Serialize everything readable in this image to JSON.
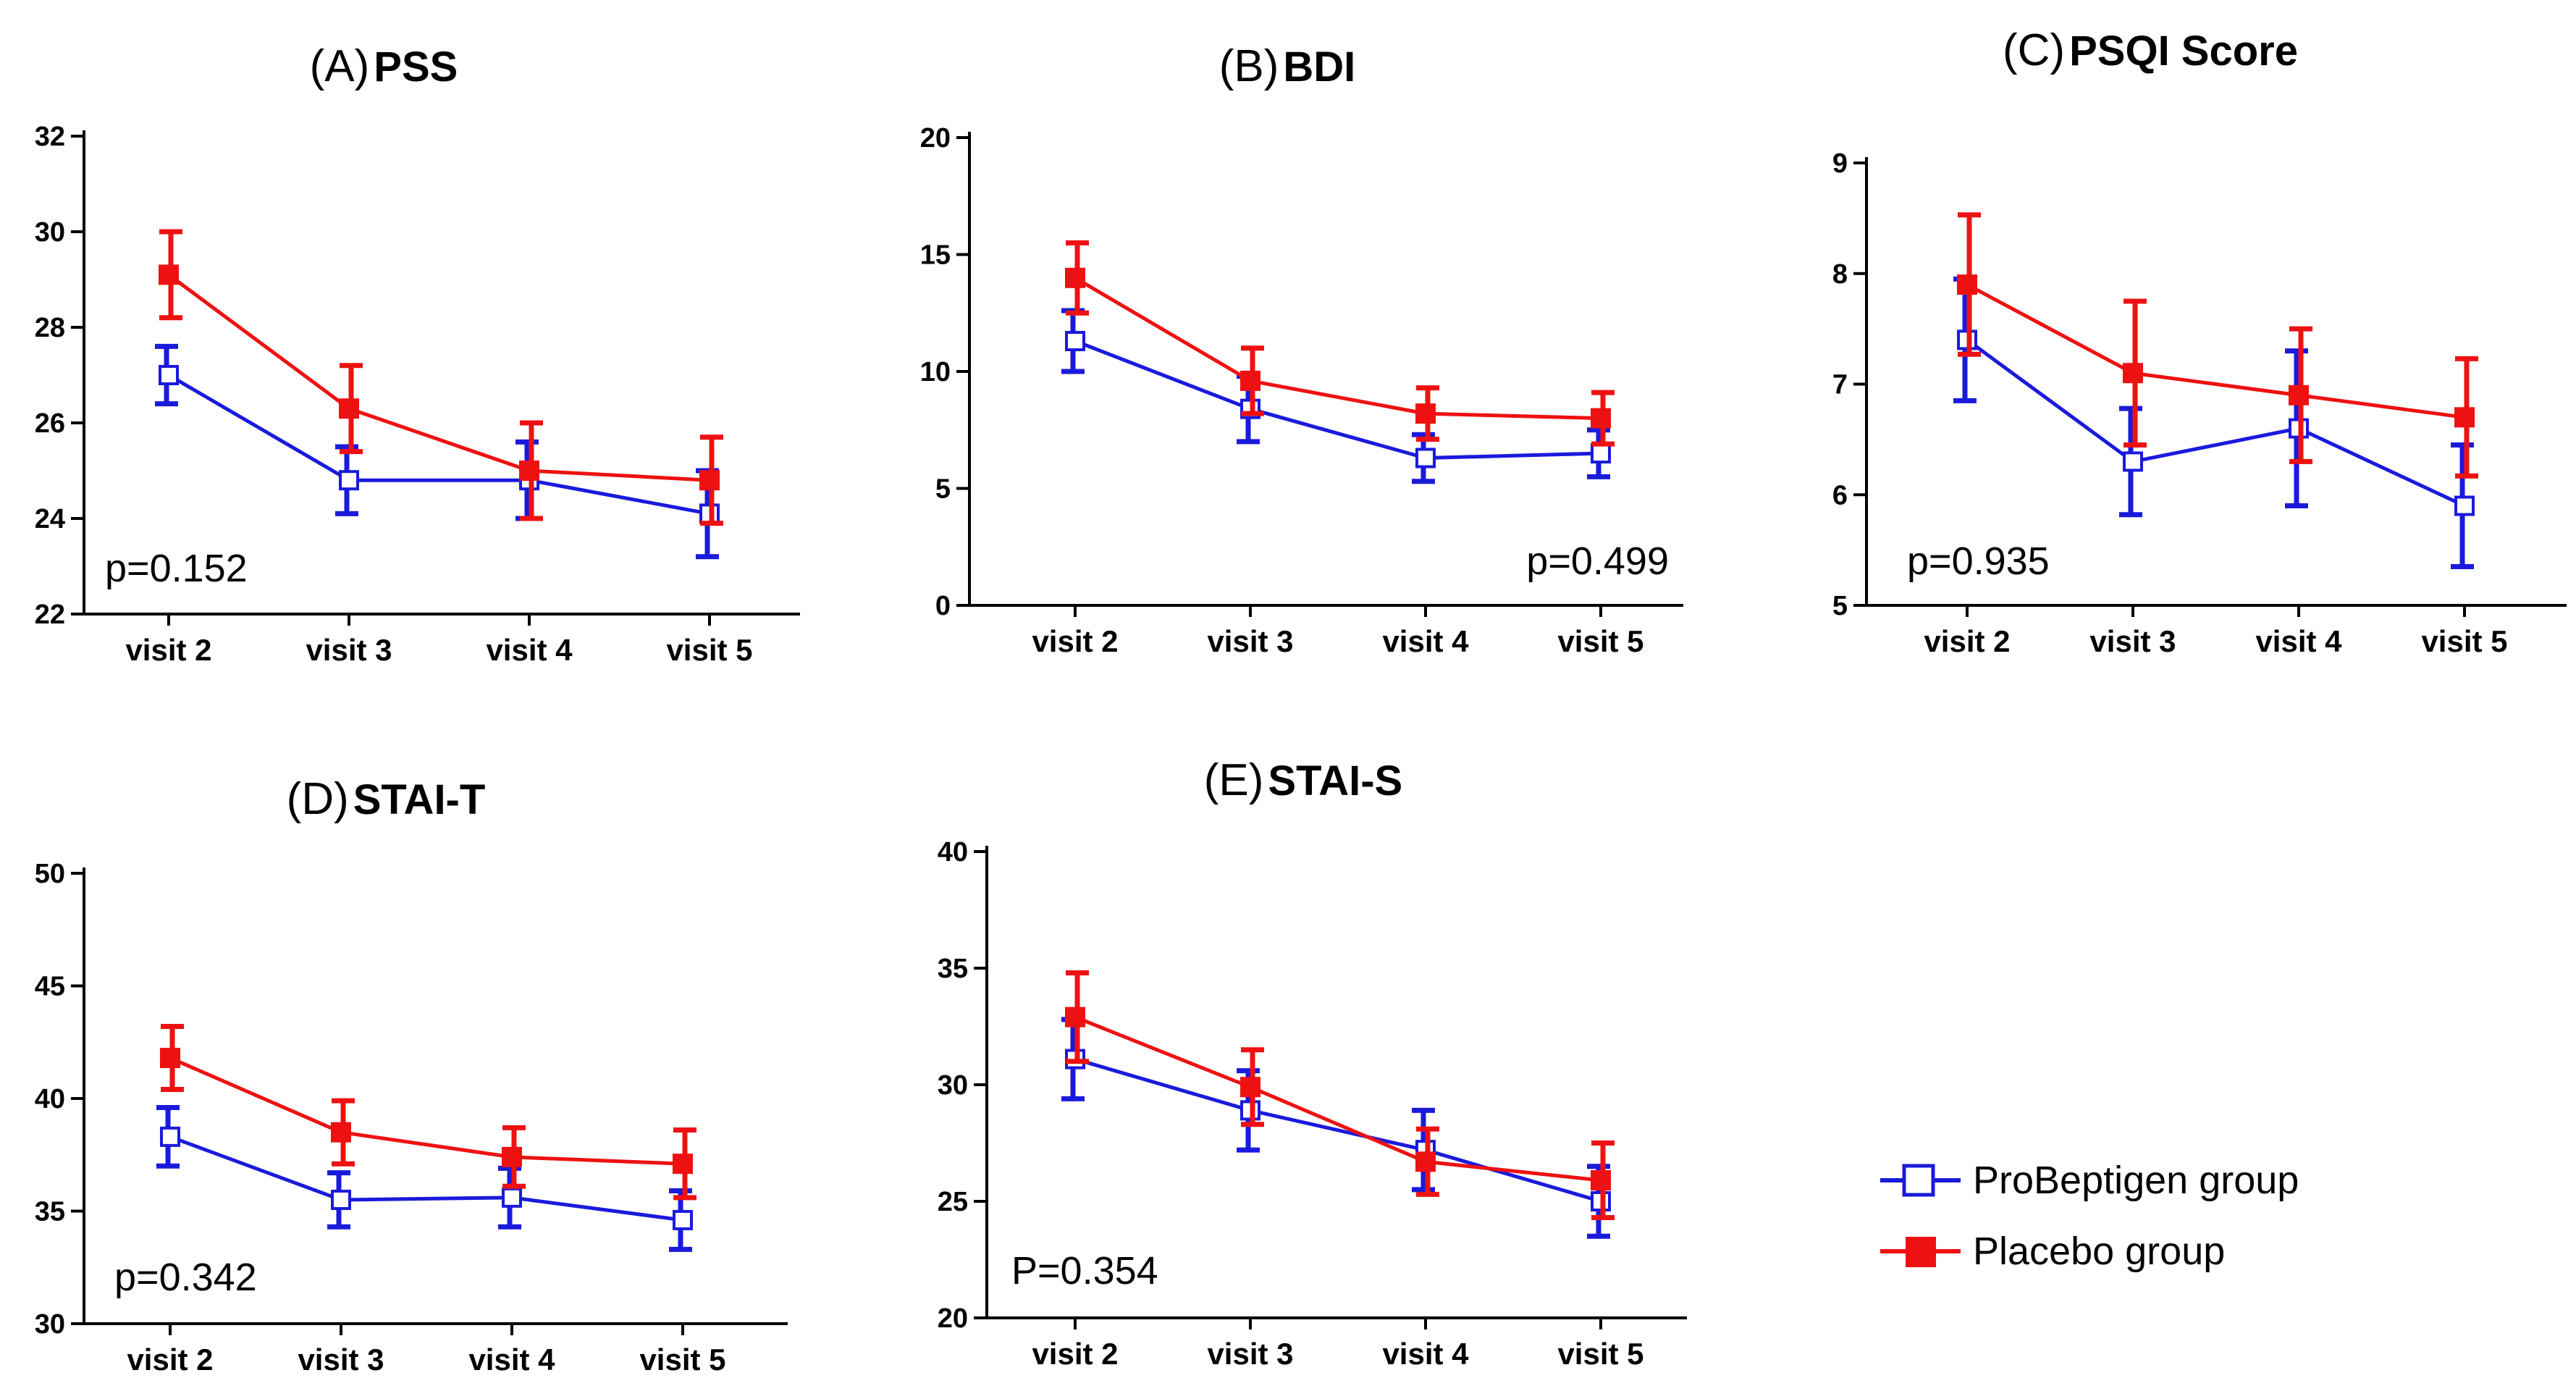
{
  "legend": {
    "items": [
      {
        "label": "ProBeptigen group",
        "color": "#1a1adc",
        "marker": "open-square"
      },
      {
        "label": "Placebo group",
        "color": "#ee1111",
        "marker": "filled-square"
      }
    ]
  },
  "chart_data": [
    {
      "type": "line",
      "panel": "A",
      "title_prefix": "(A)",
      "title": "PSS",
      "categories": [
        "visit 2",
        "visit 3",
        "visit 4",
        "visit 5"
      ],
      "ylim": [
        22,
        32
      ],
      "yticks": [
        22,
        24,
        26,
        28,
        30,
        32
      ],
      "annotation": "p=0.152",
      "annotation_position": "bottom-left",
      "series": [
        {
          "name": "ProBeptigen group",
          "values": [
            27.0,
            24.8,
            24.8,
            24.1
          ],
          "error": [
            0.6,
            0.7,
            0.8,
            0.9
          ]
        },
        {
          "name": "Placebo group",
          "values": [
            29.1,
            26.3,
            25.0,
            24.8
          ],
          "error": [
            0.9,
            0.9,
            1.0,
            0.9
          ]
        }
      ]
    },
    {
      "type": "line",
      "panel": "B",
      "title_prefix": "(B)",
      "title": "BDI",
      "categories": [
        "visit 2",
        "visit 3",
        "visit 4",
        "visit 5"
      ],
      "ylim": [
        0,
        20
      ],
      "yticks": [
        0,
        5,
        10,
        15,
        20
      ],
      "annotation": "p=0.499",
      "annotation_position": "bottom-right",
      "series": [
        {
          "name": "ProBeptigen group",
          "values": [
            11.3,
            8.4,
            6.3,
            6.5
          ],
          "error": [
            1.3,
            1.4,
            1.0,
            1.0
          ]
        },
        {
          "name": "Placebo group",
          "values": [
            14.0,
            9.6,
            8.2,
            8.0
          ],
          "error": [
            1.5,
            1.4,
            1.1,
            1.1
          ]
        }
      ]
    },
    {
      "type": "line",
      "panel": "C",
      "title_prefix": "(C)",
      "title": "PSQI Score",
      "categories": [
        "visit 2",
        "visit 3",
        "visit 4",
        "visit 5"
      ],
      "ylim": [
        5,
        9
      ],
      "yticks": [
        5,
        6,
        7,
        8,
        9
      ],
      "annotation": "p=0.935",
      "annotation_position": "bottom-left",
      "series": [
        {
          "name": "ProBeptigen group",
          "values": [
            7.4,
            6.3,
            6.6,
            5.9
          ],
          "error": [
            0.55,
            0.48,
            0.7,
            0.55
          ]
        },
        {
          "name": "Placebo group",
          "values": [
            7.9,
            7.1,
            6.9,
            6.7
          ],
          "error": [
            0.63,
            0.65,
            0.6,
            0.53
          ]
        }
      ]
    },
    {
      "type": "line",
      "panel": "D",
      "title_prefix": "(D)",
      "title": "STAI-T",
      "categories": [
        "visit 2",
        "visit 3",
        "visit 4",
        "visit 5"
      ],
      "ylim": [
        30,
        50
      ],
      "yticks": [
        30,
        35,
        40,
        45,
        50
      ],
      "annotation": "p=0.342",
      "annotation_position": "bottom-left",
      "series": [
        {
          "name": "ProBeptigen group",
          "values": [
            38.3,
            35.5,
            35.6,
            34.6
          ],
          "error": [
            1.3,
            1.2,
            1.3,
            1.3
          ]
        },
        {
          "name": "Placebo group",
          "values": [
            41.8,
            38.5,
            37.4,
            37.1
          ],
          "error": [
            1.4,
            1.4,
            1.3,
            1.5
          ]
        }
      ]
    },
    {
      "type": "line",
      "panel": "E",
      "title_prefix": "(E)",
      "title": "STAI-S",
      "categories": [
        "visit 2",
        "visit 3",
        "visit 4",
        "visit 5"
      ],
      "ylim": [
        20,
        40
      ],
      "yticks": [
        20,
        25,
        30,
        35,
        40
      ],
      "annotation": "P=0.354",
      "annotation_position": "bottom-left",
      "series": [
        {
          "name": "ProBeptigen group",
          "values": [
            31.1,
            28.9,
            27.2,
            25.0
          ],
          "error": [
            1.7,
            1.7,
            1.7,
            1.5
          ]
        },
        {
          "name": "Placebo group",
          "values": [
            32.9,
            29.9,
            26.7,
            25.9
          ],
          "error": [
            1.9,
            1.6,
            1.4,
            1.6
          ]
        }
      ]
    }
  ]
}
